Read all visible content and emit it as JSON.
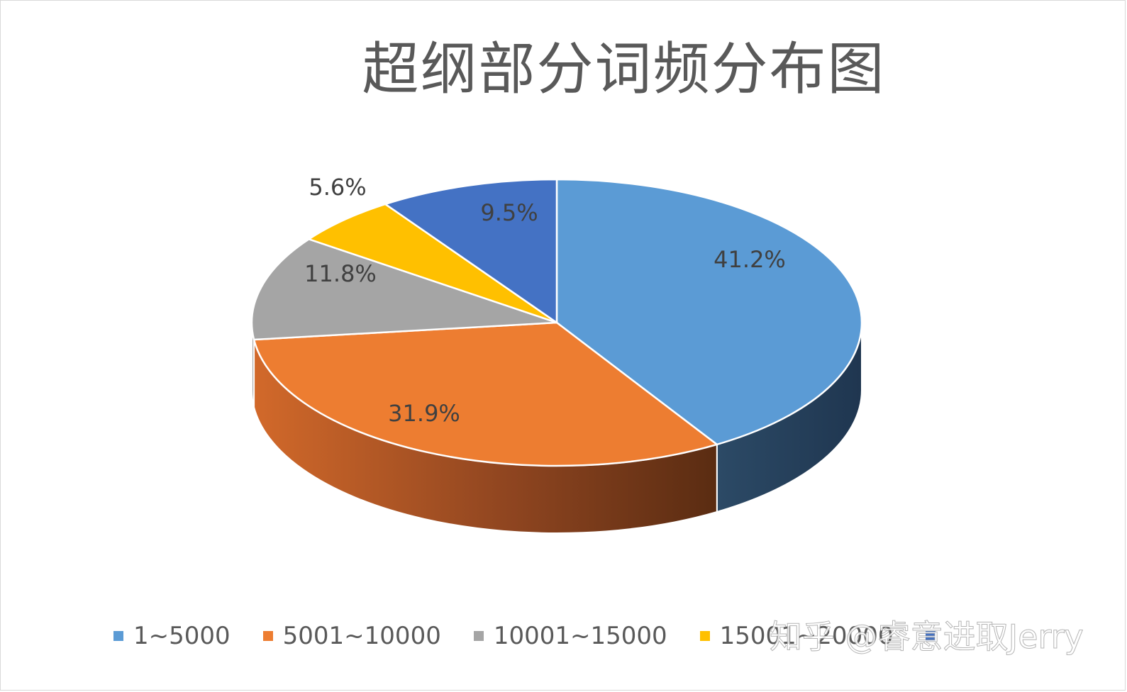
{
  "chart_data": {
    "type": "pie",
    "title": "超纲部分词频分布图",
    "categories": [
      "1~5000",
      "5001~10000",
      "10001~15000",
      "15001~20000",
      ""
    ],
    "values": [
      41.2,
      31.9,
      11.8,
      5.6,
      9.5
    ],
    "data_labels": [
      "41.2%",
      "31.9%",
      "11.8%",
      "5.6%",
      "9.5%"
    ],
    "colors": [
      "#5b9bd5",
      "#ed7d31",
      "#a5a5a5",
      "#ffc000",
      "#4472c4"
    ],
    "legend_position": "bottom",
    "style": "3d",
    "grid": false
  },
  "watermark": "知乎 @睿意进取Jerry"
}
